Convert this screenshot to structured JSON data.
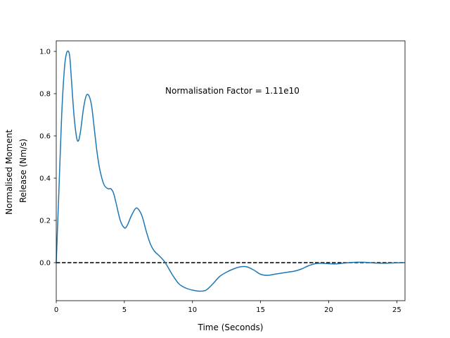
{
  "chart_data": {
    "type": "line",
    "title": "",
    "xlabel": "Time (Seconds)",
    "ylabel_lines": [
      "Normalised Moment",
      "Release (Nm/s)"
    ],
    "annotation": "Normalisation Factor = 1.11e10",
    "xlim": [
      0,
      25.6
    ],
    "ylim": [
      -0.18,
      1.05
    ],
    "xticks": [
      0,
      5,
      10,
      15,
      20,
      25
    ],
    "yticks": [
      0.0,
      0.2,
      0.4,
      0.6,
      0.8,
      1.0
    ],
    "xtick_labels": [
      "0",
      "5",
      "10",
      "15",
      "20",
      "25"
    ],
    "ytick_labels": [
      "0.0",
      "0.2",
      "0.4",
      "0.6",
      "0.8",
      "1.0"
    ],
    "grid": false,
    "reference_line": {
      "y": 0.0,
      "style": "dashed",
      "color": "#000000"
    },
    "series": [
      {
        "color": "#1f77b4",
        "x": [
          0,
          0.2,
          0.4,
          0.6,
          0.75,
          0.9,
          1.0,
          1.1,
          1.3,
          1.5,
          1.65,
          1.8,
          2.0,
          2.2,
          2.4,
          2.6,
          2.8,
          3.0,
          3.2,
          3.5,
          3.8,
          4.0,
          4.2,
          4.4,
          4.7,
          5.0,
          5.2,
          5.5,
          5.8,
          6.0,
          6.3,
          6.6,
          6.9,
          7.2,
          7.6,
          8.0,
          8.5,
          9.0,
          9.5,
          10.0,
          10.5,
          11.0,
          11.5,
          12.0,
          12.5,
          13.0,
          13.5,
          14.0,
          14.5,
          15.0,
          15.5,
          16.0,
          16.5,
          17.0,
          17.5,
          18.0,
          18.5,
          19.0,
          19.5,
          20.0,
          20.5,
          21.0,
          21.5,
          22.0,
          22.5,
          23.0,
          23.5,
          24.0,
          24.5,
          25.0,
          25.6
        ],
        "y": [
          0.0,
          0.35,
          0.7,
          0.92,
          0.99,
          1.0,
          0.97,
          0.88,
          0.7,
          0.59,
          0.58,
          0.63,
          0.73,
          0.79,
          0.79,
          0.74,
          0.63,
          0.52,
          0.44,
          0.37,
          0.35,
          0.35,
          0.33,
          0.28,
          0.2,
          0.165,
          0.175,
          0.22,
          0.255,
          0.255,
          0.22,
          0.15,
          0.09,
          0.055,
          0.03,
          0.0,
          -0.055,
          -0.1,
          -0.12,
          -0.13,
          -0.135,
          -0.13,
          -0.1,
          -0.065,
          -0.045,
          -0.03,
          -0.02,
          -0.02,
          -0.035,
          -0.055,
          -0.06,
          -0.055,
          -0.05,
          -0.045,
          -0.04,
          -0.03,
          -0.015,
          -0.005,
          -0.003,
          -0.005,
          -0.006,
          -0.003,
          0.0,
          0.002,
          0.002,
          0.0,
          -0.002,
          -0.003,
          -0.002,
          -0.001,
          0.0
        ]
      }
    ]
  }
}
